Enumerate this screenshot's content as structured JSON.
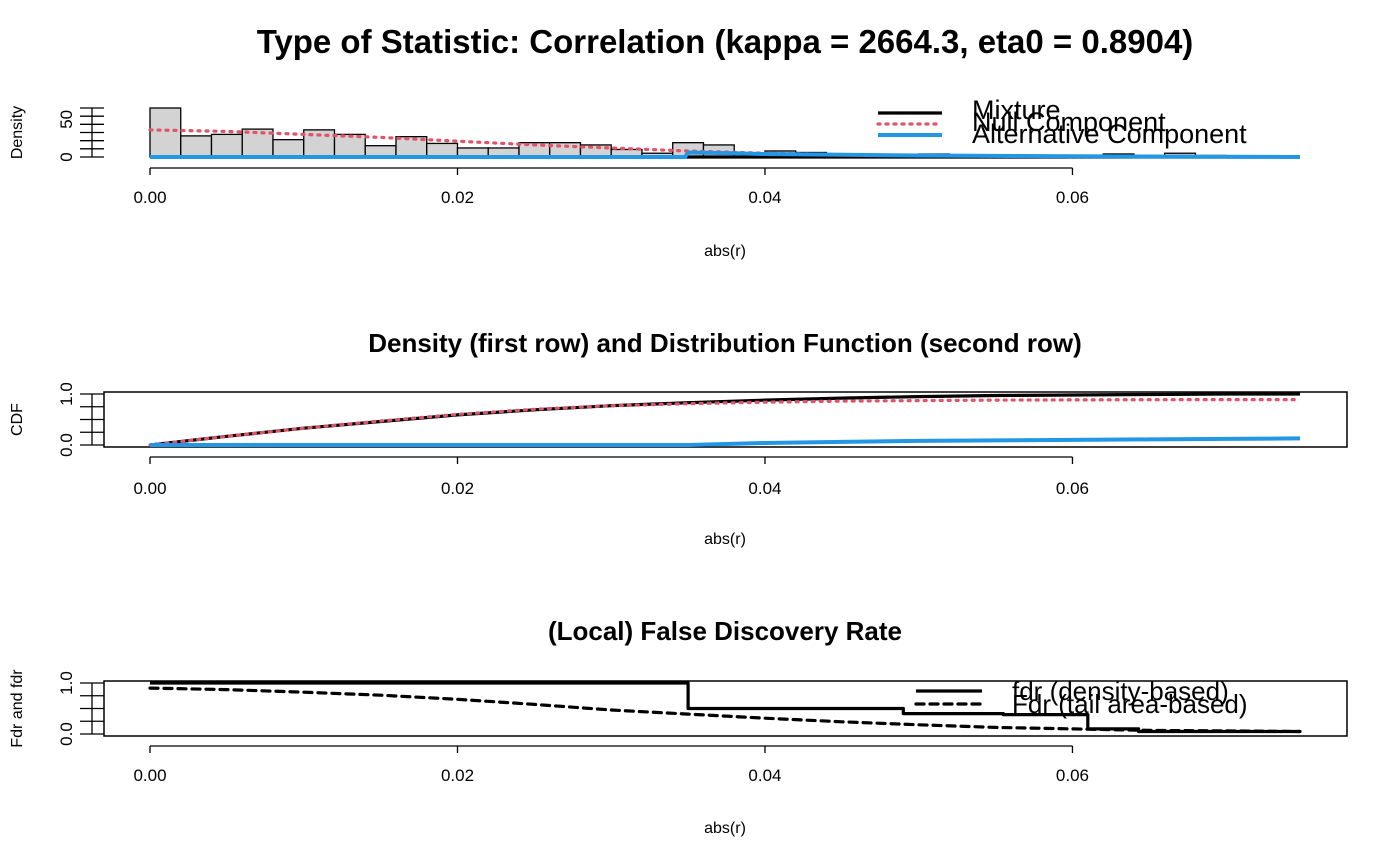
{
  "chart_data": [
    {
      "type": "histogram",
      "title": "Type of Statistic: Correlation (kappa = 2664.3, eta0 = 0.8904)",
      "xlabel": "abs(r)",
      "ylabel": "Density",
      "xlim": [
        0,
        0.075
      ],
      "ylim": [
        0,
        65
      ],
      "xticks": [
        "0.00",
        "0.02",
        "0.04",
        "0.06"
      ],
      "yticks": [
        "0",
        "50"
      ],
      "bins": {
        "start": 0,
        "width": 0.002,
        "heights": [
          65,
          28,
          30,
          37,
          23,
          36,
          30,
          15,
          27,
          18,
          12,
          12,
          19,
          19,
          16,
          10,
          5,
          19,
          16,
          0,
          8,
          6,
          0,
          2,
          0,
          4,
          2,
          2,
          0,
          0,
          0,
          4,
          0,
          5,
          2,
          0,
          0,
          0
        ]
      },
      "series": [
        {
          "name": "Mixture",
          "color": "#000000",
          "style": "solid",
          "points": [
            [
              0,
              0
            ],
            [
              0.0748,
              0
            ]
          ]
        },
        {
          "name": "Null Component",
          "color": "#DF536B",
          "style": "dotted",
          "points": [
            [
              0,
              36
            ],
            [
              0.005,
              34
            ],
            [
              0.01,
              30
            ],
            [
              0.015,
              26
            ],
            [
              0.02,
              21
            ],
            [
              0.025,
              16
            ],
            [
              0.03,
              12
            ],
            [
              0.035,
              8
            ],
            [
              0.04,
              5
            ],
            [
              0.045,
              3.2
            ],
            [
              0.05,
              2
            ],
            [
              0.055,
              1.2
            ],
            [
              0.06,
              0.7
            ],
            [
              0.065,
              0.4
            ],
            [
              0.07,
              0.2
            ],
            [
              0.0748,
              0.1
            ]
          ]
        },
        {
          "name": "Alternative Component",
          "color": "#2297E6",
          "style": "solid",
          "points": [
            [
              0,
              0
            ],
            [
              0.0348,
              0
            ],
            [
              0.035,
              6
            ],
            [
              0.038,
              5
            ],
            [
              0.04,
              4
            ],
            [
              0.045,
              3
            ],
            [
              0.05,
              2
            ],
            [
              0.055,
              1.5
            ],
            [
              0.06,
              1
            ],
            [
              0.065,
              0.6
            ],
            [
              0.07,
              0.3
            ],
            [
              0.0748,
              0
            ]
          ]
        }
      ],
      "legend": {
        "position": "top-right",
        "entries": [
          "Mixture",
          "Null Component",
          "Alternative Component"
        ]
      }
    },
    {
      "type": "line",
      "title": "Density (first row) and Distribution Function (second row)",
      "xlabel": "abs(r)",
      "ylabel": "CDF",
      "xlim": [
        0,
        0.075
      ],
      "ylim": [
        0,
        1
      ],
      "xticks": [
        "0.00",
        "0.02",
        "0.04",
        "0.06"
      ],
      "yticks": [
        "0.0",
        "1.0"
      ],
      "series": [
        {
          "name": "Mixture",
          "color": "#000000",
          "style": "solid",
          "points": [
            [
              0,
              0
            ],
            [
              0.005,
              0.17
            ],
            [
              0.01,
              0.33
            ],
            [
              0.015,
              0.46
            ],
            [
              0.02,
              0.59
            ],
            [
              0.025,
              0.69
            ],
            [
              0.03,
              0.77
            ],
            [
              0.035,
              0.83
            ],
            [
              0.04,
              0.88
            ],
            [
              0.045,
              0.92
            ],
            [
              0.05,
              0.95
            ],
            [
              0.055,
              0.97
            ],
            [
              0.06,
              0.98
            ],
            [
              0.065,
              0.99
            ],
            [
              0.07,
              1.0
            ],
            [
              0.0748,
              1.0
            ]
          ]
        },
        {
          "name": "Null Component",
          "color": "#DF536B",
          "style": "dotted",
          "points": [
            [
              0,
              0
            ],
            [
              0.005,
              0.17
            ],
            [
              0.01,
              0.33
            ],
            [
              0.015,
              0.47
            ],
            [
              0.02,
              0.6
            ],
            [
              0.025,
              0.7
            ],
            [
              0.03,
              0.77
            ],
            [
              0.035,
              0.81
            ],
            [
              0.04,
              0.84
            ],
            [
              0.045,
              0.86
            ],
            [
              0.05,
              0.87
            ],
            [
              0.055,
              0.88
            ],
            [
              0.06,
              0.885
            ],
            [
              0.065,
              0.888
            ],
            [
              0.07,
              0.89
            ],
            [
              0.0748,
              0.89
            ]
          ]
        },
        {
          "name": "Alternative Component",
          "color": "#2297E6",
          "style": "solid",
          "points": [
            [
              0,
              0
            ],
            [
              0.035,
              0
            ],
            [
              0.04,
              0.04
            ],
            [
              0.045,
              0.06
            ],
            [
              0.05,
              0.08
            ],
            [
              0.055,
              0.09
            ],
            [
              0.06,
              0.1
            ],
            [
              0.065,
              0.11
            ],
            [
              0.07,
              0.12
            ],
            [
              0.0748,
              0.13
            ]
          ]
        }
      ]
    },
    {
      "type": "line",
      "title": "(Local) False Discovery Rate",
      "xlabel": "abs(r)",
      "ylabel": "Fdr and fdr",
      "xlim": [
        0,
        0.075
      ],
      "ylim": [
        0,
        1
      ],
      "xticks": [
        "0.00",
        "0.02",
        "0.04",
        "0.06"
      ],
      "yticks": [
        "0.0",
        "1.0"
      ],
      "series": [
        {
          "name": "fdr (density-based)",
          "color": "#000000",
          "style": "solid",
          "points": [
            [
              0,
              1
            ],
            [
              0.035,
              1
            ],
            [
              0.035,
              0.5
            ],
            [
              0.049,
              0.5
            ],
            [
              0.049,
              0.4
            ],
            [
              0.0555,
              0.4
            ],
            [
              0.0555,
              0.38
            ],
            [
              0.061,
              0.38
            ],
            [
              0.061,
              0.1
            ],
            [
              0.0643,
              0.1
            ],
            [
              0.0643,
              0.05
            ],
            [
              0.0748,
              0.05
            ]
          ]
        },
        {
          "name": "Fdr (tail area-based)",
          "color": "#000000",
          "style": "dashed",
          "points": [
            [
              0,
              0.9
            ],
            [
              0.005,
              0.87
            ],
            [
              0.01,
              0.82
            ],
            [
              0.015,
              0.76
            ],
            [
              0.02,
              0.68
            ],
            [
              0.025,
              0.58
            ],
            [
              0.03,
              0.47
            ],
            [
              0.035,
              0.39
            ],
            [
              0.04,
              0.31
            ],
            [
              0.045,
              0.24
            ],
            [
              0.05,
              0.18
            ],
            [
              0.055,
              0.13
            ],
            [
              0.06,
              0.1
            ],
            [
              0.065,
              0.07
            ],
            [
              0.07,
              0.06
            ],
            [
              0.0748,
              0.05
            ]
          ]
        }
      ],
      "legend": {
        "position": "top-right",
        "entries": [
          "fdr (density-based)",
          "Fdr (tail area-based)"
        ]
      }
    }
  ]
}
